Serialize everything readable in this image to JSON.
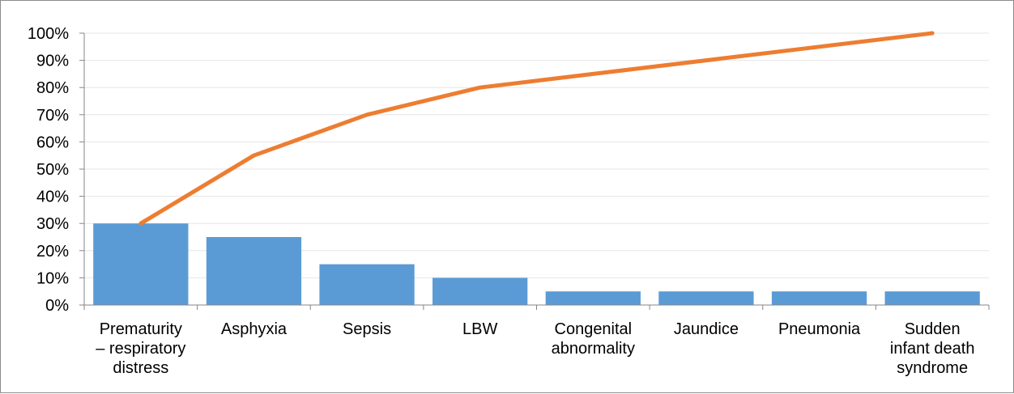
{
  "chart_data": {
    "type": "bar",
    "categories": [
      [
        "Prematurity",
        "– respiratory",
        "distress"
      ],
      [
        "Asphyxia"
      ],
      [
        "Sepsis"
      ],
      [
        "LBW"
      ],
      [
        "Congenital",
        "abnormality"
      ],
      [
        "Jaundice"
      ],
      [
        "Pneumonia"
      ],
      [
        "Sudden",
        "infant death",
        "syndrome"
      ]
    ],
    "series": [
      {
        "type": "bar",
        "values": [
          30,
          25,
          15,
          10,
          5,
          5,
          5,
          5
        ],
        "color": "#5b9bd5"
      },
      {
        "type": "line",
        "values": [
          30,
          55,
          70,
          80,
          85,
          90,
          95,
          100
        ],
        "color": "#ed7d31"
      }
    ],
    "y_ticks": [
      "0%",
      "10%",
      "20%",
      "30%",
      "40%",
      "50%",
      "60%",
      "70%",
      "80%",
      "90%",
      "100%"
    ],
    "ylim": [
      0,
      100
    ],
    "grid": true,
    "legend": "none"
  }
}
